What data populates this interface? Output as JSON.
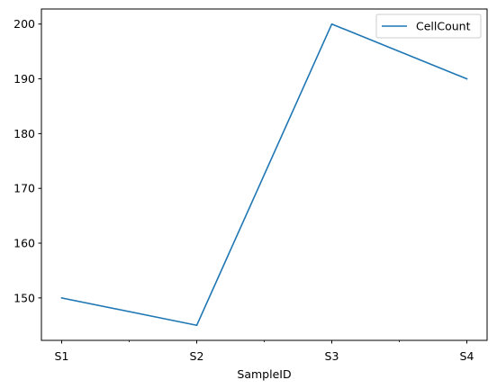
{
  "chart_data": {
    "type": "line",
    "categories": [
      "S1",
      "S2",
      "S3",
      "S4"
    ],
    "series": [
      {
        "name": "CellCount",
        "values": [
          150,
          145,
          200,
          190
        ],
        "color": "#1f77b4"
      }
    ],
    "xlabel": "SampleID",
    "ylabel": "",
    "title": "",
    "ylim": [
      142.25,
      202.75
    ],
    "yticks": [
      150,
      160,
      170,
      180,
      190,
      200
    ],
    "xlim": [
      -0.15,
      3.15
    ],
    "minor_xticks": [
      0.5,
      1.5,
      2.5
    ],
    "grid": false,
    "legend": "top-right"
  }
}
